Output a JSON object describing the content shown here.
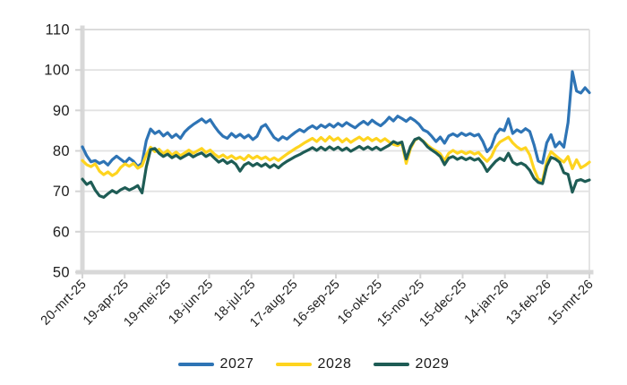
{
  "chart_data": {
    "type": "line",
    "title": "",
    "xlabel": "",
    "ylabel": "",
    "ylim": [
      50,
      110
    ],
    "grid": true,
    "legend_position": "bottom",
    "ytick_labels": [
      "110",
      "100",
      "90",
      "80",
      "70",
      "60",
      "50"
    ],
    "x_labels": [
      "20-mrt-25",
      "19-apr-25",
      "19-mei-25",
      "18-jun-25",
      "18-jul-25",
      "17-aug-25",
      "16-sep-25",
      "16-okt-25",
      "15-nov-25",
      "15-dec-25",
      "14-jan-26",
      "13-feb-26",
      "15-mrt-26"
    ],
    "style": {
      "grid_color": "#e2e2e2",
      "axis_color": "#d8d8d8",
      "label_color": "#1f1f1f"
    },
    "series": [
      {
        "name": "2027",
        "color": "#2E74B5",
        "values": [
          81.0,
          78.8,
          77.3,
          77.6,
          76.9,
          77.4,
          76.5,
          77.8,
          78.7,
          77.9,
          77.1,
          78.2,
          77.4,
          76.1,
          77.0,
          82.5,
          85.4,
          84.3,
          84.9,
          83.7,
          84.5,
          83.3,
          84.1,
          83.1,
          84.7,
          85.7,
          86.5,
          87.2,
          87.9,
          87.0,
          87.7,
          86.1,
          84.7,
          83.6,
          83.1,
          84.3,
          83.4,
          84.1,
          83.2,
          83.9,
          82.8,
          83.6,
          85.9,
          86.5,
          84.9,
          83.3,
          82.6,
          83.5,
          82.9,
          83.8,
          84.6,
          85.3,
          84.7,
          85.6,
          86.2,
          85.5,
          86.4,
          85.8,
          86.6,
          85.9,
          86.8,
          86.1,
          87.0,
          86.3,
          85.7,
          86.6,
          87.3,
          86.5,
          87.6,
          86.8,
          86.2,
          87.1,
          88.3,
          87.4,
          88.6,
          88.0,
          87.3,
          88.2,
          87.5,
          86.6,
          85.2,
          84.7,
          83.6,
          82.3,
          83.4,
          81.9,
          83.7,
          84.2,
          83.6,
          84.4,
          83.8,
          84.3,
          83.7,
          84.1,
          82.3,
          79.8,
          81.0,
          84.0,
          85.4,
          85.0,
          87.9,
          84.3,
          85.2,
          84.6,
          85.5,
          84.8,
          81.5,
          77.5,
          77.0,
          82.0,
          84.0,
          81.0,
          82.2,
          80.9,
          87.0,
          99.6,
          94.8,
          94.3,
          95.6,
          94.4
        ]
      },
      {
        "name": "2028",
        "color": "#FED41F",
        "values": [
          77.6,
          76.6,
          76.1,
          76.8,
          75.0,
          74.1,
          74.8,
          73.9,
          74.5,
          75.9,
          76.8,
          76.2,
          76.9,
          75.7,
          76.3,
          79.0,
          80.9,
          79.8,
          80.4,
          79.3,
          80.1,
          79.0,
          79.7,
          78.8,
          79.5,
          80.2,
          79.4,
          80.0,
          80.6,
          79.6,
          80.2,
          79.2,
          78.4,
          79.0,
          78.2,
          78.8,
          78.0,
          78.5,
          77.8,
          78.9,
          78.1,
          78.7,
          78.0,
          78.5,
          77.7,
          78.3,
          77.6,
          78.4,
          79.2,
          79.9,
          80.6,
          81.2,
          81.9,
          82.5,
          83.1,
          82.3,
          83.3,
          82.4,
          83.5,
          82.6,
          83.2,
          82.2,
          83.0,
          82.1,
          82.8,
          83.4,
          82.6,
          83.3,
          82.5,
          83.1,
          82.3,
          83.0,
          82.2,
          81.6,
          81.3,
          81.9,
          76.9,
          80.5,
          82.6,
          83.2,
          82.4,
          81.4,
          80.6,
          80.0,
          79.3,
          77.6,
          79.4,
          80.1,
          79.4,
          79.9,
          79.3,
          79.8,
          79.2,
          79.6,
          78.4,
          77.4,
          78.6,
          80.9,
          82.2,
          82.8,
          83.4,
          82.0,
          81.0,
          80.3,
          80.8,
          79.0,
          75.5,
          73.0,
          72.6,
          77.5,
          79.8,
          78.9,
          78.0,
          77.2,
          78.6,
          75.6,
          77.8,
          75.8,
          76.4,
          77.2
        ]
      },
      {
        "name": "2029",
        "color": "#1E5C55",
        "values": [
          73.0,
          71.7,
          72.3,
          70.3,
          68.9,
          68.5,
          69.4,
          70.2,
          69.6,
          70.4,
          70.9,
          70.3,
          70.8,
          71.4,
          69.6,
          76.0,
          80.3,
          80.6,
          79.4,
          78.6,
          79.2,
          78.3,
          78.9,
          78.1,
          78.7,
          79.3,
          78.5,
          79.1,
          79.5,
          78.6,
          79.2,
          78.2,
          77.2,
          77.8,
          76.9,
          77.5,
          76.7,
          75.0,
          76.5,
          77.1,
          76.3,
          76.9,
          76.2,
          76.8,
          75.9,
          76.6,
          75.8,
          76.7,
          77.4,
          78.0,
          78.6,
          79.1,
          79.7,
          80.2,
          80.8,
          80.1,
          80.9,
          80.2,
          81.0,
          80.3,
          80.9,
          80.1,
          80.7,
          79.9,
          80.5,
          81.1,
          80.4,
          81.0,
          80.3,
          80.9,
          80.2,
          80.8,
          81.4,
          82.3,
          81.8,
          82.2,
          78.0,
          81.0,
          82.8,
          83.2,
          82.3,
          81.0,
          80.2,
          79.5,
          78.6,
          76.6,
          78.2,
          78.6,
          77.9,
          78.4,
          77.8,
          78.3,
          77.7,
          78.1,
          76.8,
          74.9,
          76.2,
          77.4,
          78.2,
          77.6,
          79.4,
          77.2,
          76.6,
          77.0,
          76.4,
          75.2,
          73.2,
          72.2,
          71.9,
          76.2,
          78.4,
          78.0,
          77.2,
          74.6,
          74.2,
          69.8,
          72.6,
          72.9,
          72.4,
          72.8
        ]
      }
    ]
  }
}
